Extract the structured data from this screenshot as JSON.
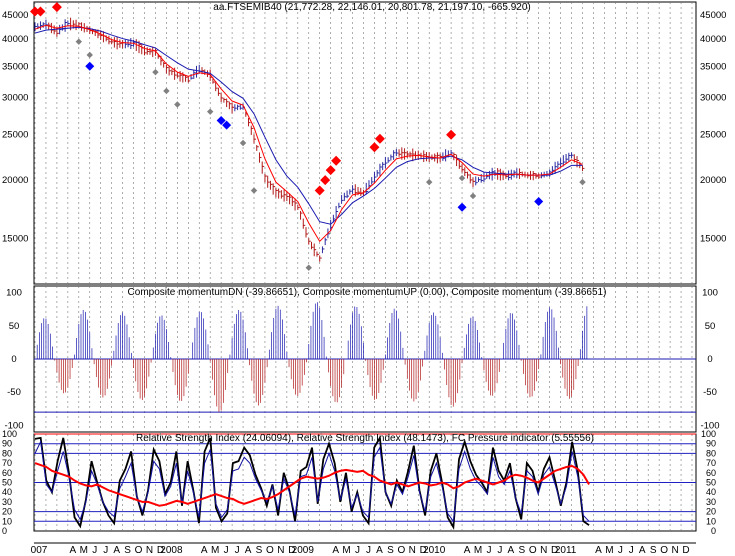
{
  "chart_data": [
    {
      "type": "candlestick",
      "title": "aa.FTSEMIB40 (21,772.28, 22,146.01, 20,801.78, 21,197.10, -665.920)",
      "scale": "log",
      "ylim": [
        12000,
        48000
      ],
      "yticks": [
        15000,
        20000,
        25000,
        30000,
        35000,
        40000,
        45000
      ],
      "ytick_labels": [
        "15000",
        "20000",
        "25000",
        "30000",
        "35000",
        "40000",
        "45000"
      ],
      "x_months": [
        "2007-01",
        "2007-02",
        "2007-03",
        "2007-04",
        "2007-05",
        "2007-06",
        "2007-07",
        "2007-08",
        "2007-09",
        "2007-10",
        "2007-11",
        "2007-12",
        "2008-01",
        "2008-02",
        "2008-03",
        "2008-04",
        "2008-05",
        "2008-06",
        "2008-07",
        "2008-08",
        "2008-09",
        "2008-10",
        "2008-11",
        "2008-12",
        "2009-01",
        "2009-02",
        "2009-03",
        "2009-04",
        "2009-05",
        "2009-06",
        "2009-07",
        "2009-08",
        "2009-09",
        "2009-10",
        "2009-11",
        "2009-12",
        "2010-01",
        "2010-02",
        "2010-03",
        "2010-04",
        "2010-05",
        "2010-06",
        "2010-07",
        "2010-08",
        "2010-09",
        "2010-10",
        "2010-11",
        "2010-12",
        "2011-01",
        "2011-02",
        "2011-03"
      ],
      "close": [
        42500,
        43000,
        41500,
        43200,
        42800,
        41800,
        40800,
        39500,
        39000,
        39200,
        37800,
        37500,
        34500,
        33500,
        32800,
        34500,
        33500,
        30000,
        28500,
        28700,
        24500,
        20200,
        18800,
        18500,
        17500,
        14800,
        13600,
        16000,
        18200,
        19100,
        18800,
        20300,
        21800,
        22900,
        22700,
        22600,
        22400,
        22300,
        22900,
        21200,
        19800,
        20300,
        20700,
        20400,
        20700,
        20500,
        20400,
        20700,
        21800,
        22600,
        21200
      ],
      "ma_red": [
        42000,
        42800,
        42200,
        42700,
        42600,
        41900,
        41000,
        39900,
        39300,
        39200,
        38200,
        37700,
        35400,
        34000,
        33300,
        33900,
        33600,
        31300,
        29500,
        28900,
        25900,
        22200,
        19800,
        18900,
        18000,
        16200,
        14800,
        15600,
        17300,
        18600,
        18800,
        19700,
        21000,
        22200,
        22500,
        22600,
        22400,
        22300,
        22700,
        21800,
        20600,
        20400,
        20600,
        20500,
        20600,
        20500,
        20500,
        20600,
        21300,
        22100,
        21600
      ],
      "ma_blue": [
        41200,
        41800,
        42000,
        42200,
        42400,
        42100,
        41600,
        40800,
        40100,
        39600,
        38900,
        38300,
        36900,
        35600,
        34500,
        34200,
        33800,
        32400,
        30900,
        29900,
        27700,
        24700,
        22100,
        20400,
        19300,
        17800,
        16300,
        16100,
        16900,
        17900,
        18500,
        19200,
        20200,
        21300,
        21900,
        22200,
        22300,
        22300,
        22500,
        22100,
        21300,
        20800,
        20700,
        20600,
        20600,
        20500,
        20500,
        20500,
        20900,
        21500,
        21500
      ],
      "red_diamonds": [
        {
          "x": "2007-01",
          "y": 45800
        },
        {
          "x": "2007-01",
          "y": 45800
        },
        {
          "x": "2007-03",
          "y": 46800
        },
        {
          "x": "2009-03",
          "y": 19000
        },
        {
          "x": "2009-03",
          "y": 20000
        },
        {
          "x": "2009-04",
          "y": 21000
        },
        {
          "x": "2009-04",
          "y": 22000
        },
        {
          "x": "2009-08",
          "y": 23500
        },
        {
          "x": "2009-08",
          "y": 24500
        },
        {
          "x": "2010-03",
          "y": 25000
        }
      ],
      "blue_diamonds": [
        {
          "x": "2007-06",
          "y": 35000
        },
        {
          "x": "2008-06",
          "y": 26800
        },
        {
          "x": "2008-06",
          "y": 26200
        },
        {
          "x": "2010-04",
          "y": 17500
        },
        {
          "x": "2010-11",
          "y": 18000
        }
      ],
      "gray_diamonds": [
        {
          "x": "2007-05",
          "y": 39500
        },
        {
          "x": "2007-06",
          "y": 37000
        },
        {
          "x": "2007-12",
          "y": 34000
        },
        {
          "x": "2008-01",
          "y": 31000
        },
        {
          "x": "2008-02",
          "y": 29000
        },
        {
          "x": "2008-05",
          "y": 28000
        },
        {
          "x": "2008-08",
          "y": 24000
        },
        {
          "x": "2008-09",
          "y": 19000
        },
        {
          "x": "2009-02",
          "y": 13000
        },
        {
          "x": "2010-01",
          "y": 19800
        },
        {
          "x": "2010-04",
          "y": 20200
        },
        {
          "x": "2010-05",
          "y": 18500
        },
        {
          "x": "2011-03",
          "y": 19800
        }
      ]
    },
    {
      "type": "bar",
      "title": "Composite momentumDN (-39.86651), Composite momentumUP (0.00), Composite momentum (-39.86651)",
      "ylim": [
        -110,
        110
      ],
      "yticks": [
        100,
        50,
        0,
        -50,
        -100
      ],
      "ytick_labels": [
        "100",
        "50",
        "0",
        "-50",
        "-100"
      ],
      "period_months": 3.55,
      "amplitudes": [
        62,
        -52,
        74,
        -58,
        70,
        -62,
        66,
        -64,
        72,
        -80,
        74,
        -70,
        80,
        -56,
        86,
        -66,
        80,
        -62,
        76,
        -64,
        70,
        -72,
        64,
        -56,
        70,
        -58,
        78,
        -60,
        84
      ],
      "reference_line": -80
    },
    {
      "type": "line",
      "title": "Relative Strength Index (24.06094), Relative Strength Index (48.1473), FC Pressure indicator (5.55556)",
      "ylim": [
        0,
        100
      ],
      "yticks": [
        100,
        90,
        80,
        70,
        60,
        50,
        40,
        30,
        20,
        10,
        0
      ],
      "ytick_labels": [
        "100",
        "90",
        "80",
        "70",
        "60",
        "50",
        "40",
        "30",
        "20",
        "10",
        "0"
      ],
      "hlines": [
        {
          "y": 100,
          "color": "#ff0000"
        },
        {
          "y": 90,
          "color": "#2020c0"
        },
        {
          "y": 80,
          "color": "#2020c0"
        },
        {
          "y": 50,
          "color": "#2020c0"
        },
        {
          "y": 20,
          "color": "#2020c0"
        },
        {
          "y": 10,
          "color": "#2020c0"
        }
      ],
      "series": [
        {
          "color": "#000000",
          "values": [
            95,
            96,
            52,
            40,
            72,
            96,
            60,
            14,
            5,
            32,
            72,
            50,
            30,
            16,
            8,
            52,
            64,
            82,
            36,
            16,
            42,
            84,
            72,
            38,
            50,
            82,
            26,
            72,
            42,
            8,
            82,
            96,
            24,
            10,
            18,
            70,
            72,
            86,
            78,
            58,
            44,
            26,
            48,
            16,
            60,
            42,
            10,
            62,
            66,
            86,
            28,
            74,
            90,
            70,
            30,
            60,
            20,
            40,
            16,
            8,
            86,
            96,
            40,
            26,
            52,
            40,
            62,
            88,
            42,
            16,
            62,
            80,
            50,
            14,
            4,
            74,
            92,
            72,
            58,
            50,
            40,
            86,
            62,
            52,
            70,
            34,
            12,
            70,
            62,
            40,
            64,
            76,
            52,
            26,
            50,
            92,
            62,
            10,
            6
          ]
        },
        {
          "color": "#1010a0",
          "values": [
            80,
            92,
            48,
            40,
            62,
            82,
            56,
            22,
            12,
            30,
            62,
            48,
            30,
            20,
            15,
            44,
            56,
            70,
            36,
            20,
            40,
            72,
            64,
            36,
            46,
            70,
            28,
            62,
            40,
            14,
            70,
            84,
            28,
            14,
            22,
            62,
            64,
            76,
            70,
            54,
            42,
            30,
            46,
            22,
            54,
            40,
            16,
            56,
            58,
            76,
            30,
            64,
            80,
            62,
            32,
            54,
            24,
            38,
            20,
            14,
            76,
            86,
            40,
            28,
            48,
            38,
            56,
            78,
            40,
            20,
            56,
            70,
            46,
            18,
            10,
            64,
            82,
            64,
            52,
            46,
            38,
            76,
            56,
            48,
            62,
            34,
            18,
            62,
            56,
            38,
            58,
            66,
            48,
            28,
            46,
            82,
            56,
            16,
            10
          ]
        },
        {
          "color": "#ff0000",
          "width": 2,
          "values": [
            70,
            68,
            66,
            62,
            60,
            58,
            56,
            52,
            49,
            47,
            46,
            48,
            45,
            42,
            40,
            38,
            36,
            34,
            32,
            30,
            30,
            28,
            26,
            27,
            29,
            31,
            30,
            28,
            30,
            32,
            34,
            36,
            38,
            36,
            34,
            33,
            30,
            28,
            30,
            32,
            34,
            33,
            35,
            38,
            42,
            46,
            50,
            54,
            56,
            55,
            54,
            55,
            57,
            60,
            62,
            63,
            62,
            61,
            62,
            58,
            56,
            52,
            50,
            48,
            50,
            48,
            46,
            48,
            50,
            49,
            47,
            48,
            50,
            48,
            44,
            46,
            50,
            52,
            54,
            52,
            50,
            48,
            50,
            52,
            56,
            58,
            57,
            55,
            52,
            50,
            54,
            58,
            62,
            64,
            66,
            67,
            64,
            58,
            48
          ]
        }
      ]
    }
  ],
  "x_axis": {
    "labels": [
      "007",
      "A",
      "M",
      "J",
      "J",
      "A",
      "S",
      "O",
      "N",
      "D",
      "2008",
      "A",
      "M",
      "J",
      "J",
      "A",
      "S",
      "O",
      "N",
      "D",
      "2009",
      "A",
      "M",
      "J",
      "J",
      "A",
      "S",
      "O",
      "N",
      "D",
      "2010",
      "A",
      "M",
      "J",
      "J",
      "A",
      "S",
      "O",
      "N",
      "D",
      "2011",
      "A",
      "M",
      "J",
      "J",
      "A",
      "S",
      "O",
      "N",
      "D"
    ],
    "months": [
      "2007-01",
      "2007-04",
      "2007-05",
      "2007-06",
      "2007-07",
      "2007-08",
      "2007-09",
      "2007-10",
      "2007-11",
      "2007-12",
      "2008-01",
      "2008-04",
      "2008-05",
      "2008-06",
      "2008-07",
      "2008-08",
      "2008-09",
      "2008-10",
      "2008-11",
      "2008-12",
      "2009-01",
      "2009-04",
      "2009-05",
      "2009-06",
      "2009-07",
      "2009-08",
      "2009-09",
      "2009-10",
      "2009-11",
      "2009-12",
      "2010-01",
      "2010-04",
      "2010-05",
      "2010-06",
      "2010-07",
      "2010-08",
      "2010-09",
      "2010-10",
      "2010-11",
      "2010-12",
      "2011-01",
      "2011-04",
      "2011-05",
      "2011-06",
      "2011-07",
      "2011-08",
      "2011-09",
      "2011-10",
      "2011-11",
      "2011-12"
    ]
  },
  "colors": {
    "up_bar": "#2a2aa0",
    "down_bar": "#b01818",
    "red_line": "#ff0000",
    "blue_line": "#1a1ab0",
    "grid": "#7a7a7a"
  }
}
